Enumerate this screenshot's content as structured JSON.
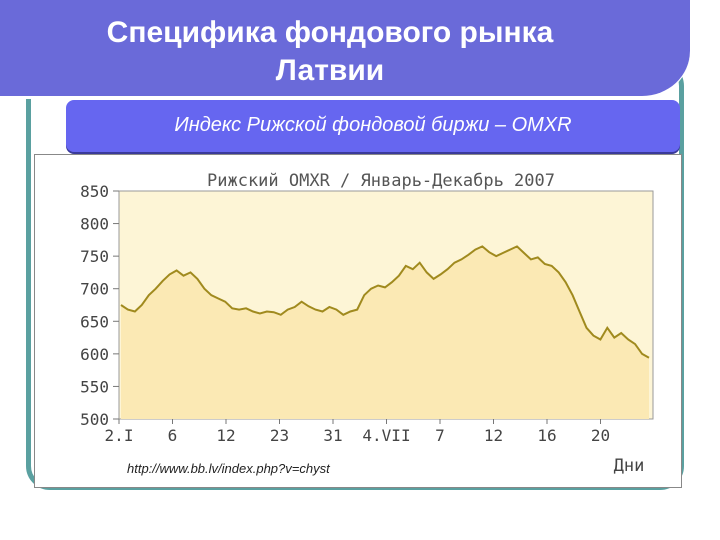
{
  "slide": {
    "title_line1": "Специфика фондового рынка",
    "title_line2": "Латвии",
    "subtitle": "Индекс Рижской фондовой биржи – OMXR",
    "source_url": "http://www.bb.lv/index.php?v=chyst"
  },
  "colors": {
    "title_bg": "#6a6ad9",
    "subtitle_bg": "#6666f0",
    "frame": "#5aa0a0",
    "plot_fill": "#fdf5d6",
    "line": "#a08a1e"
  },
  "chart_data": {
    "type": "area",
    "title": "Рижский OMXR / Январь-Декабрь 2007",
    "xlabel": "Дни",
    "ylabel": "",
    "ylim": [
      500,
      850
    ],
    "yticks": [
      850,
      800,
      750,
      700,
      650,
      600,
      550,
      500
    ],
    "xticks": [
      "2.I",
      "6",
      "12",
      "23",
      "31",
      "4.VII",
      "7",
      "12",
      "16",
      "20"
    ],
    "grid": false,
    "series": [
      {
        "values": [
          675,
          668,
          665,
          675,
          690,
          700,
          712,
          722,
          728,
          720,
          725,
          715,
          700,
          690,
          685,
          680,
          670,
          668,
          670,
          665,
          662,
          665,
          664,
          660,
          668,
          672,
          680,
          673,
          668,
          665,
          672,
          668,
          660,
          665,
          668,
          690,
          700,
          705,
          702,
          710,
          720,
          735,
          730,
          740,
          725,
          715,
          722,
          730,
          740,
          745,
          752,
          760,
          765,
          756,
          750,
          755,
          760,
          765,
          755,
          745,
          748,
          738,
          735,
          725,
          710,
          690,
          665,
          640,
          628,
          622,
          640,
          625,
          632,
          622,
          615,
          600,
          594
        ]
      }
    ]
  }
}
